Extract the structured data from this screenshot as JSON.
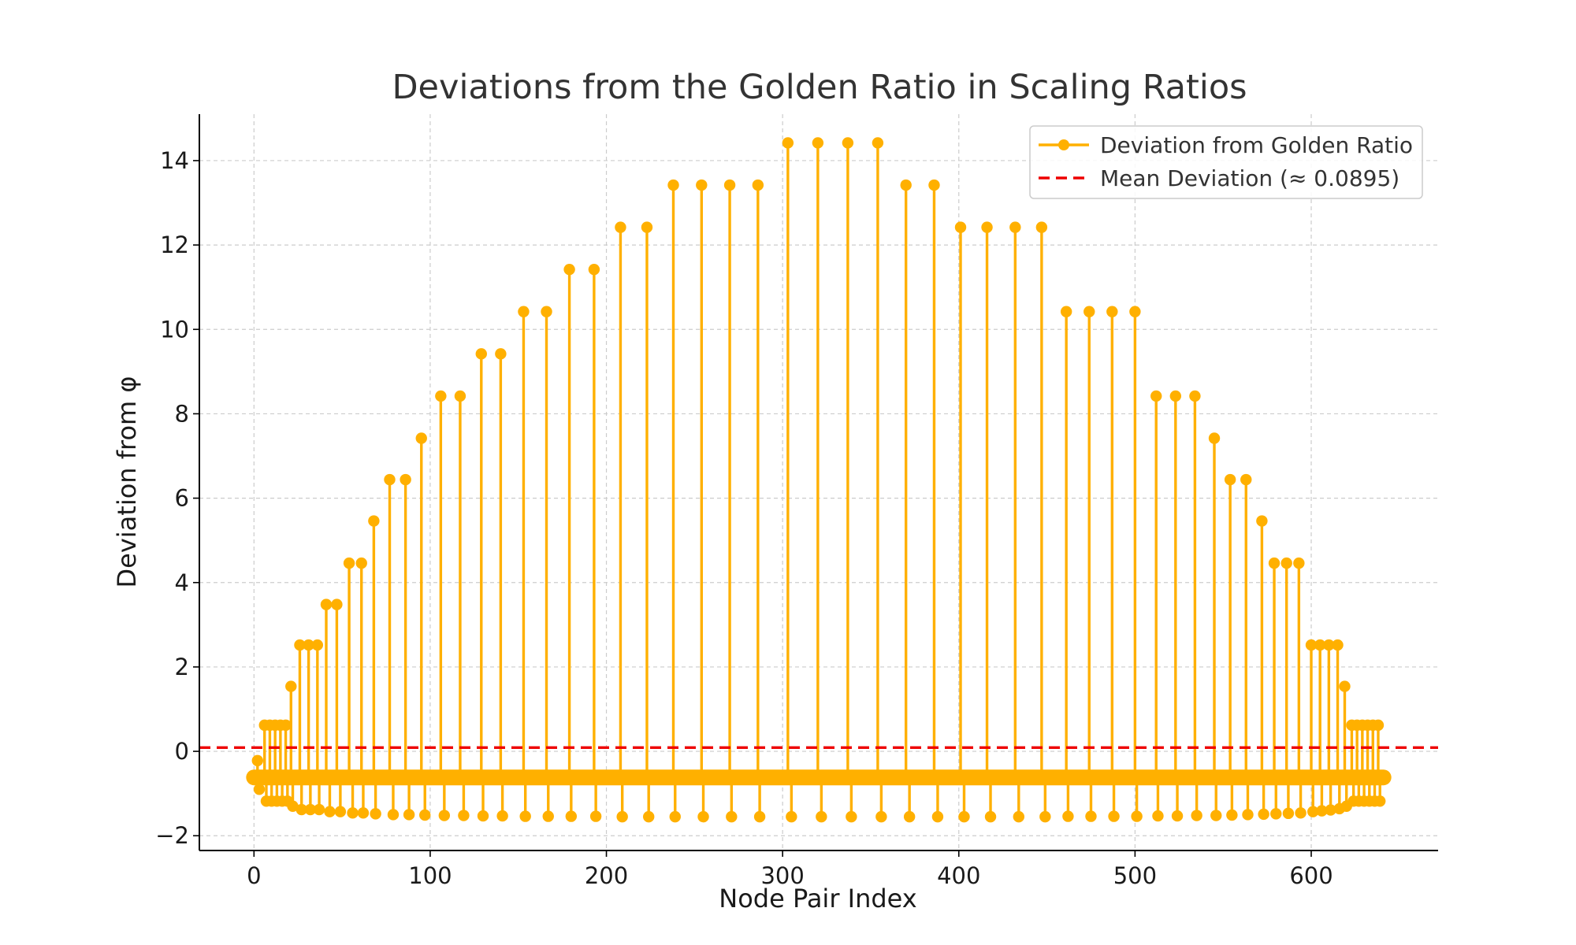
{
  "chart_data": {
    "type": "line",
    "title": "Deviations from the Golden Ratio in Scaling Ratios",
    "xlabel": "Node Pair Index",
    "ylabel": "Deviation from φ",
    "xlim": [
      -31,
      672
    ],
    "ylim": [
      -2.35,
      15.1
    ],
    "xticks": [
      0,
      100,
      200,
      300,
      400,
      500,
      600
    ],
    "yticks": [
      -2,
      0,
      2,
      4,
      6,
      8,
      10,
      12,
      14
    ],
    "xtick_labels": [
      "0",
      "100",
      "200",
      "300",
      "400",
      "500",
      "600"
    ],
    "ytick_labels": [
      "−2",
      "0",
      "2",
      "4",
      "6",
      "8",
      "10",
      "12",
      "14"
    ],
    "grid": true,
    "legend_position": "top-right",
    "baseline": -0.618,
    "series": [
      {
        "name": "Deviation from Golden Ratio",
        "color": "#FFB000",
        "marker": "circle",
        "peaks": [
          {
            "x": 6,
            "y": 0.62
          },
          {
            "x": 9,
            "y": 0.62
          },
          {
            "x": 12,
            "y": 0.62
          },
          {
            "x": 15,
            "y": 0.62
          },
          {
            "x": 18,
            "y": 0.62
          },
          {
            "x": 21,
            "y": 1.54
          },
          {
            "x": 26,
            "y": 2.52
          },
          {
            "x": 31,
            "y": 2.52
          },
          {
            "x": 36,
            "y": 2.52
          },
          {
            "x": 41,
            "y": 3.48
          },
          {
            "x": 47,
            "y": 3.48
          },
          {
            "x": 54,
            "y": 4.46
          },
          {
            "x": 61,
            "y": 4.46
          },
          {
            "x": 68,
            "y": 5.46
          },
          {
            "x": 77,
            "y": 6.44
          },
          {
            "x": 86,
            "y": 6.44
          },
          {
            "x": 95,
            "y": 7.42
          },
          {
            "x": 106,
            "y": 8.42
          },
          {
            "x": 117,
            "y": 8.42
          },
          {
            "x": 129,
            "y": 9.42
          },
          {
            "x": 140,
            "y": 9.42
          },
          {
            "x": 153,
            "y": 10.42
          },
          {
            "x": 166,
            "y": 10.42
          },
          {
            "x": 179,
            "y": 11.42
          },
          {
            "x": 193,
            "y": 11.42
          },
          {
            "x": 208,
            "y": 12.42
          },
          {
            "x": 223,
            "y": 12.42
          },
          {
            "x": 238,
            "y": 13.42
          },
          {
            "x": 254,
            "y": 13.42
          },
          {
            "x": 270,
            "y": 13.42
          },
          {
            "x": 286,
            "y": 13.42
          },
          {
            "x": 303,
            "y": 14.42
          },
          {
            "x": 320,
            "y": 14.42
          },
          {
            "x": 337,
            "y": 14.42
          },
          {
            "x": 354,
            "y": 14.42
          },
          {
            "x": 370,
            "y": 13.42
          },
          {
            "x": 386,
            "y": 13.42
          },
          {
            "x": 401,
            "y": 12.42
          },
          {
            "x": 416,
            "y": 12.42
          },
          {
            "x": 432,
            "y": 12.42
          },
          {
            "x": 447,
            "y": 12.42
          },
          {
            "x": 461,
            "y": 10.42
          },
          {
            "x": 474,
            "y": 10.42
          },
          {
            "x": 487,
            "y": 10.42
          },
          {
            "x": 500,
            "y": 10.42
          },
          {
            "x": 512,
            "y": 8.42
          },
          {
            "x": 523,
            "y": 8.42
          },
          {
            "x": 534,
            "y": 8.42
          },
          {
            "x": 545,
            "y": 7.42
          },
          {
            "x": 554,
            "y": 6.44
          },
          {
            "x": 563,
            "y": 6.44
          },
          {
            "x": 572,
            "y": 5.46
          },
          {
            "x": 579,
            "y": 4.46
          },
          {
            "x": 586,
            "y": 4.46
          },
          {
            "x": 593,
            "y": 4.46
          },
          {
            "x": 600,
            "y": 2.52
          },
          {
            "x": 605,
            "y": 2.52
          },
          {
            "x": 610,
            "y": 2.52
          },
          {
            "x": 615,
            "y": 2.52
          },
          {
            "x": 619,
            "y": 1.54
          },
          {
            "x": 623,
            "y": 0.62
          },
          {
            "x": 626,
            "y": 0.62
          },
          {
            "x": 629,
            "y": 0.62
          },
          {
            "x": 632,
            "y": 0.62
          },
          {
            "x": 635,
            "y": 0.62
          },
          {
            "x": 638,
            "y": 0.62
          }
        ],
        "troughs": [
          {
            "x": 0,
            "y": -0.62
          },
          {
            "x": 2,
            "y": -0.22
          },
          {
            "x": 3,
            "y": -0.9
          },
          {
            "x": 7,
            "y": -1.18
          },
          {
            "x": 10,
            "y": -1.18
          },
          {
            "x": 13,
            "y": -1.18
          },
          {
            "x": 16,
            "y": -1.18
          },
          {
            "x": 19,
            "y": -1.18
          },
          {
            "x": 22,
            "y": -1.3
          },
          {
            "x": 27,
            "y": -1.38
          },
          {
            "x": 32,
            "y": -1.38
          },
          {
            "x": 37,
            "y": -1.38
          },
          {
            "x": 43,
            "y": -1.43
          },
          {
            "x": 49,
            "y": -1.43
          },
          {
            "x": 56,
            "y": -1.46
          },
          {
            "x": 62,
            "y": -1.46
          },
          {
            "x": 69,
            "y": -1.48
          },
          {
            "x": 79,
            "y": -1.5
          },
          {
            "x": 88,
            "y": -1.5
          },
          {
            "x": 97,
            "y": -1.51
          },
          {
            "x": 108,
            "y": -1.52
          },
          {
            "x": 119,
            "y": -1.52
          },
          {
            "x": 130,
            "y": -1.53
          },
          {
            "x": 141,
            "y": -1.53
          },
          {
            "x": 154,
            "y": -1.54
          },
          {
            "x": 167,
            "y": -1.54
          },
          {
            "x": 180,
            "y": -1.54
          },
          {
            "x": 194,
            "y": -1.54
          },
          {
            "x": 209,
            "y": -1.55
          },
          {
            "x": 224,
            "y": -1.55
          },
          {
            "x": 239,
            "y": -1.55
          },
          {
            "x": 255,
            "y": -1.55
          },
          {
            "x": 271,
            "y": -1.55
          },
          {
            "x": 287,
            "y": -1.55
          },
          {
            "x": 305,
            "y": -1.55
          },
          {
            "x": 322,
            "y": -1.55
          },
          {
            "x": 339,
            "y": -1.55
          },
          {
            "x": 356,
            "y": -1.55
          },
          {
            "x": 372,
            "y": -1.55
          },
          {
            "x": 388,
            "y": -1.55
          },
          {
            "x": 403,
            "y": -1.55
          },
          {
            "x": 418,
            "y": -1.55
          },
          {
            "x": 434,
            "y": -1.55
          },
          {
            "x": 449,
            "y": -1.55
          },
          {
            "x": 462,
            "y": -1.54
          },
          {
            "x": 475,
            "y": -1.54
          },
          {
            "x": 488,
            "y": -1.54
          },
          {
            "x": 501,
            "y": -1.54
          },
          {
            "x": 513,
            "y": -1.53
          },
          {
            "x": 524,
            "y": -1.53
          },
          {
            "x": 535,
            "y": -1.52
          },
          {
            "x": 546,
            "y": -1.52
          },
          {
            "x": 555,
            "y": -1.51
          },
          {
            "x": 564,
            "y": -1.5
          },
          {
            "x": 573,
            "y": -1.49
          },
          {
            "x": 580,
            "y": -1.48
          },
          {
            "x": 587,
            "y": -1.47
          },
          {
            "x": 594,
            "y": -1.46
          },
          {
            "x": 601,
            "y": -1.43
          },
          {
            "x": 606,
            "y": -1.41
          },
          {
            "x": 611,
            "y": -1.39
          },
          {
            "x": 616,
            "y": -1.36
          },
          {
            "x": 620,
            "y": -1.3
          },
          {
            "x": 624,
            "y": -1.18
          },
          {
            "x": 627,
            "y": -1.18
          },
          {
            "x": 630,
            "y": -1.18
          },
          {
            "x": 633,
            "y": -1.18
          },
          {
            "x": 636,
            "y": -1.18
          },
          {
            "x": 639,
            "y": -1.18
          },
          {
            "x": 641,
            "y": -0.62
          }
        ]
      },
      {
        "name": "Mean Deviation (≈ 0.0895)",
        "color": "#EE0000",
        "style": "dashed",
        "value": 0.0895
      }
    ]
  }
}
